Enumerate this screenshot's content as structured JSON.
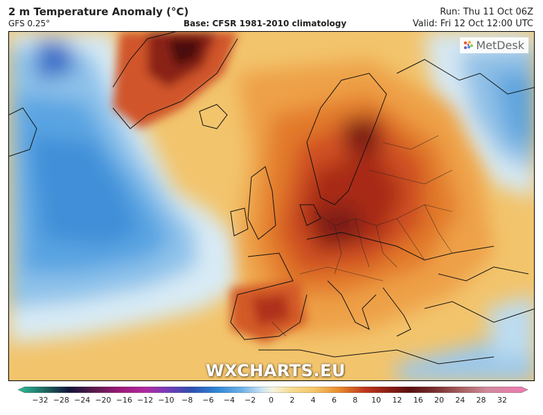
{
  "header": {
    "title": "2 m Temperature Anomaly (°C)",
    "model": "GFS 0.25°",
    "base": "Base: CFSR 1981-2010 climatology",
    "run": "Run: Thu 11 Oct 06Z",
    "valid": "Valid: Fri 12 Oct 12:00 UTC"
  },
  "branding": {
    "metdesk": "MetDesk",
    "site": "WXCHARTS.EU"
  },
  "legend": {
    "ticks": [
      "−32",
      "−28",
      "−24",
      "−20",
      "−16",
      "−12",
      "−10",
      "−8",
      "−6",
      "−4",
      "−2",
      "0",
      "2",
      "4",
      "6",
      "8",
      "10",
      "12",
      "16",
      "20",
      "24",
      "28",
      "32"
    ]
  },
  "colors": {
    "cold_low": "#2fbf9a",
    "deep_cold": "#14143c",
    "blue": "#2f86d6",
    "light_blue": "#cfe6f4",
    "neutral": "#f7f3dc",
    "yellow": "#f5c86a",
    "orange": "#e98a2c",
    "red": "#c0371c",
    "dark_red": "#5a1010",
    "warm_high": "#f07ab4"
  }
}
